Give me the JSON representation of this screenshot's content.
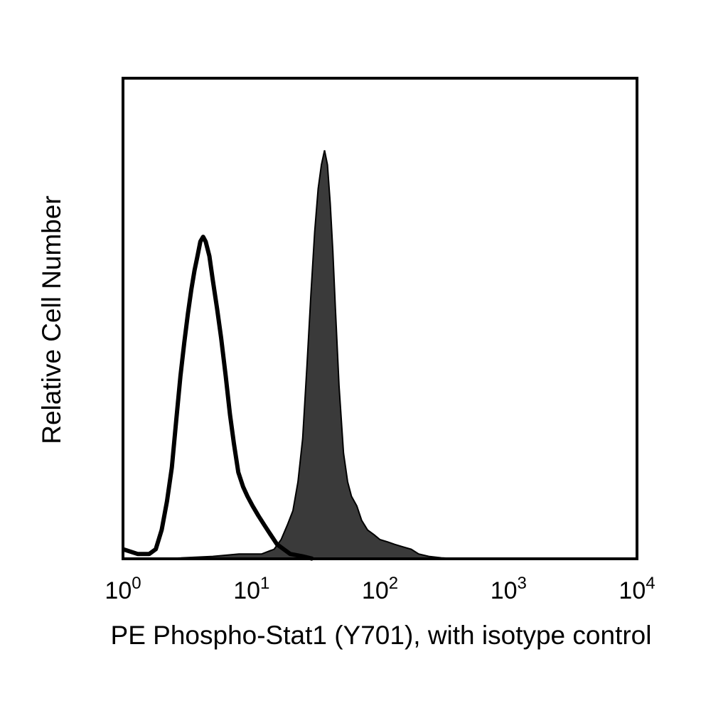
{
  "chart_data": {
    "type": "area",
    "title": "",
    "xlabel": "PE Phospho-Stat1 (Y701), with isotype control",
    "ylabel": "Relative Cell Number",
    "x_scale": "log",
    "xlim": [
      1,
      10000
    ],
    "ylim": [
      0,
      1
    ],
    "grid": false,
    "x_ticks": [
      {
        "base": "10",
        "exp": "0"
      },
      {
        "base": "10",
        "exp": "1"
      },
      {
        "base": "10",
        "exp": "2"
      },
      {
        "base": "10",
        "exp": "3"
      },
      {
        "base": "10",
        "exp": "4"
      }
    ],
    "series": [
      {
        "role": "isotype control",
        "style": "outline",
        "color": "#000000",
        "x": [
          1.0,
          1.3,
          1.6,
          1.8,
          2.0,
          2.2,
          2.4,
          2.6,
          2.8,
          3.0,
          3.2,
          3.4,
          3.6,
          3.8,
          4.0,
          4.2,
          4.4,
          4.7,
          5.0,
          5.4,
          5.8,
          6.3,
          6.8,
          7.3,
          7.9,
          8.6,
          9.3,
          10.2,
          11.3,
          12.6,
          14.1,
          15.8,
          17.8,
          20.0,
          25.0,
          30.0
        ],
        "y": [
          0.02,
          0.01,
          0.01,
          0.02,
          0.06,
          0.12,
          0.19,
          0.29,
          0.38,
          0.45,
          0.51,
          0.56,
          0.6,
          0.63,
          0.66,
          0.67,
          0.66,
          0.63,
          0.58,
          0.52,
          0.46,
          0.38,
          0.3,
          0.24,
          0.18,
          0.15,
          0.13,
          0.11,
          0.09,
          0.07,
          0.05,
          0.03,
          0.02,
          0.01,
          0.005,
          0.0
        ]
      },
      {
        "role": "Phospho-Stat1 (Y701)",
        "style": "filled",
        "color": "#3a3a3a",
        "x": [
          2.0,
          5.0,
          8.0,
          12.0,
          15.0,
          17.0,
          19.0,
          21.0,
          23.0,
          25.0,
          27.0,
          29.0,
          31.0,
          33.0,
          35.0,
          37.0,
          39.0,
          41.0,
          43.0,
          45.0,
          48.0,
          52.0,
          56.0,
          60.0,
          66.0,
          72.0,
          80.0,
          90.0,
          100.0,
          115.0,
          130.0,
          150.0,
          175.0,
          200.0,
          240.0,
          300.0,
          400.0
        ],
        "y": [
          0.0,
          0.005,
          0.01,
          0.01,
          0.02,
          0.04,
          0.07,
          0.1,
          0.16,
          0.25,
          0.4,
          0.55,
          0.68,
          0.77,
          0.82,
          0.85,
          0.82,
          0.74,
          0.64,
          0.52,
          0.36,
          0.22,
          0.16,
          0.13,
          0.11,
          0.08,
          0.06,
          0.05,
          0.04,
          0.035,
          0.03,
          0.025,
          0.02,
          0.01,
          0.005,
          0.002,
          0.0
        ]
      }
    ]
  }
}
